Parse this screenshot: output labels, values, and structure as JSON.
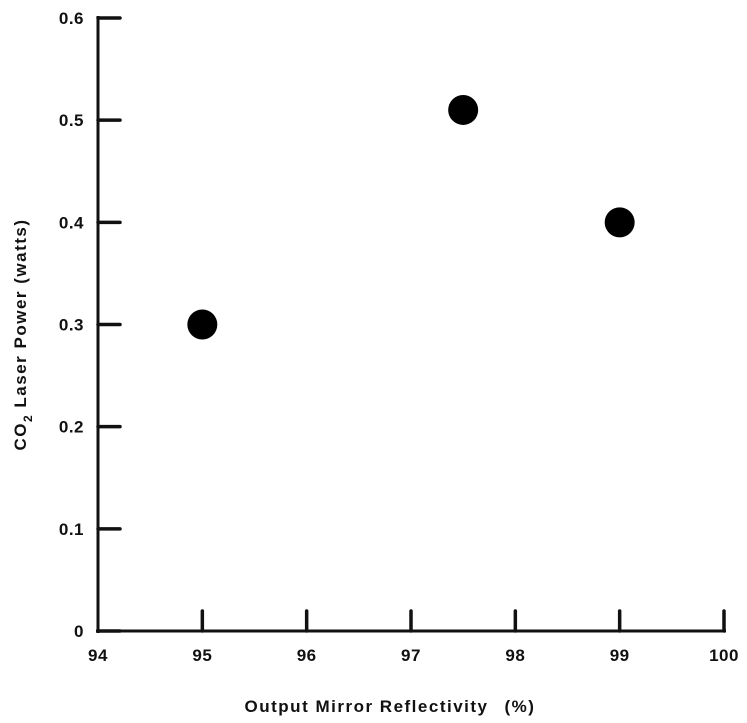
{
  "chart_data": {
    "type": "scatter",
    "xlabel": "Output Mirror Reflectivity",
    "xlabel_unit": "(%)",
    "ylabel_prefix": "CO",
    "ylabel_sub": "2",
    "ylabel_suffix": " Laser Power (watts)",
    "xlim": [
      94,
      100
    ],
    "ylim": [
      0,
      0.6
    ],
    "x_ticks": [
      94,
      95,
      96,
      97,
      98,
      99,
      100
    ],
    "x_tick_labels": [
      "94",
      "95",
      "96",
      "97",
      "98",
      "99",
      "100"
    ],
    "y_ticks": [
      0,
      0.1,
      0.2,
      0.3,
      0.4,
      0.5,
      0.6
    ],
    "y_tick_labels": [
      "0",
      "0.1",
      "0.2",
      "0.3",
      "0.4",
      "0.5",
      "0.6"
    ],
    "grid": false,
    "points": [
      {
        "x": 95,
        "y": 0.3
      },
      {
        "x": 97.5,
        "y": 0.51
      },
      {
        "x": 99,
        "y": 0.4
      }
    ],
    "marker_color": "#000000"
  }
}
